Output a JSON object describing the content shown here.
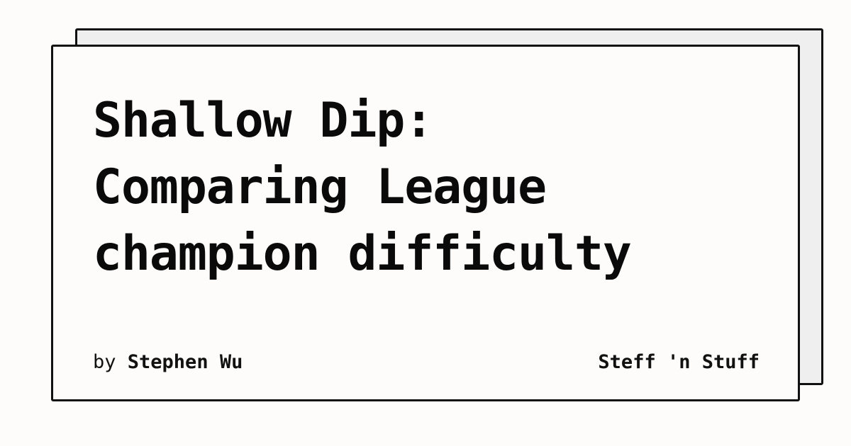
{
  "title_lines": [
    "Shallow Dip:",
    "Comparing League",
    "champion difficulty"
  ],
  "byline": {
    "prefix": "by",
    "author": "Stephen Wu"
  },
  "site_name": "Steff 'n Stuff",
  "colors": {
    "background": "#fdfcfa",
    "back_card": "#efefef",
    "border": "#111111",
    "text": "#0a0a0a"
  }
}
